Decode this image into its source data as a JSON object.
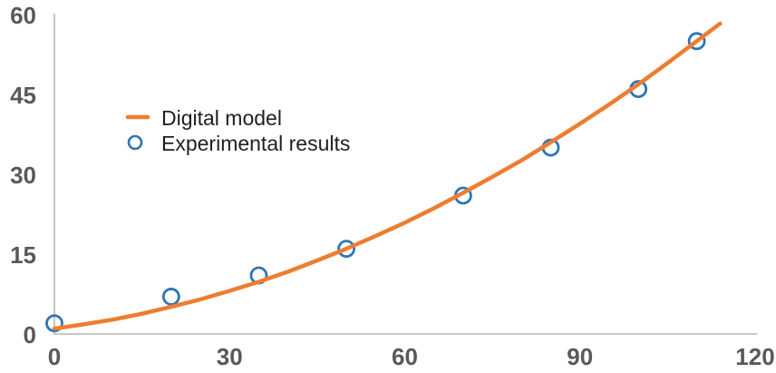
{
  "chart_data": {
    "type": "line",
    "title": "",
    "x_axis": {
      "label": "",
      "min": 0,
      "max": 120,
      "tick_values": [
        0,
        30,
        60,
        90,
        120
      ],
      "tick_labels": [
        "0",
        "30",
        "60",
        "90",
        "120"
      ]
    },
    "y_axis": {
      "label": "",
      "min": 0,
      "max": 60,
      "tick_values": [
        0,
        15,
        30,
        45,
        60
      ],
      "tick_labels": [
        "0",
        "15",
        "30",
        "45",
        "60"
      ]
    },
    "grid": false,
    "legend": {
      "position": "inside-upper-left",
      "entries": [
        {
          "label": "Digital model",
          "marker": "line",
          "color": "#ED7D31"
        },
        {
          "label": "Experimental results",
          "marker": "open-circle",
          "color": "#2E75B6"
        }
      ]
    },
    "series": [
      {
        "name": "Digital model",
        "type": "line",
        "color": "#ED7D31",
        "stroke_width": 4.5,
        "points": [
          [
            0,
            1.0
          ],
          [
            5,
            1.8
          ],
          [
            10,
            2.7
          ],
          [
            15,
            3.8
          ],
          [
            20,
            5.1
          ],
          [
            25,
            6.5
          ],
          [
            30,
            8.1
          ],
          [
            35,
            9.8
          ],
          [
            40,
            11.7
          ],
          [
            45,
            13.8
          ],
          [
            50,
            16.0
          ],
          [
            55,
            18.4
          ],
          [
            60,
            20.9
          ],
          [
            65,
            23.6
          ],
          [
            70,
            26.5
          ],
          [
            75,
            29.5
          ],
          [
            80,
            32.6
          ],
          [
            85,
            36.0
          ],
          [
            90,
            39.5
          ],
          [
            95,
            43.1
          ],
          [
            100,
            46.9
          ],
          [
            105,
            50.9
          ],
          [
            110,
            55.0
          ],
          [
            114,
            58.3
          ]
        ]
      },
      {
        "name": "Experimental results",
        "type": "scatter",
        "color": "#2E75B6",
        "marker": "open-circle",
        "marker_radius": 8.5,
        "stroke_width": 2.8,
        "points": [
          [
            0,
            2
          ],
          [
            20,
            7
          ],
          [
            35,
            11
          ],
          [
            50,
            16
          ],
          [
            70,
            26
          ],
          [
            85,
            35
          ],
          [
            100,
            46
          ],
          [
            110,
            55
          ]
        ]
      }
    ],
    "colors": {
      "background": "#FFFFFF",
      "axis_line": "#BFBFBF",
      "tick_label": "#595959",
      "legend_text": "#1F1F1F",
      "model_line": "#ED7D31",
      "experimental_marker": "#2E75B6"
    }
  }
}
